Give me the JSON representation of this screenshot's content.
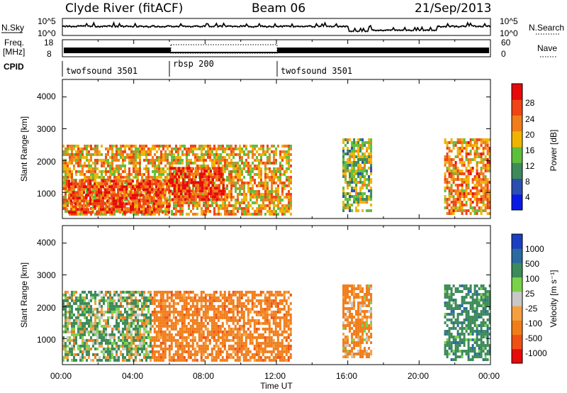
{
  "header": {
    "title": "Clyde River (fitACF)",
    "beam": "Beam 06",
    "date": "21/Sep/2013"
  },
  "noise_panel": {
    "left_label": "N.Sky",
    "right_label": "N.Search",
    "left_ticks": [
      "10^5",
      "10^0"
    ],
    "right_ticks": [
      "10^5",
      "10^0"
    ]
  },
  "freq_panel": {
    "left_label_1": "Freq.",
    "left_label_2": "[MHz]",
    "right_label": "Nave",
    "left_ticks": [
      "18",
      "8"
    ],
    "right_ticks": [
      "60",
      "0"
    ]
  },
  "cpid_panel": {
    "label": "CPID",
    "segments": [
      {
        "name": "twofsound 3501",
        "start_hour": 0,
        "end_hour": 6
      },
      {
        "name": "rbsp 200",
        "start_hour": 6,
        "end_hour": 12
      },
      {
        "name": "twofsound 3501",
        "start_hour": 12,
        "end_hour": 24
      }
    ]
  },
  "x_axis": {
    "label": "Time UT",
    "tick_labels": [
      "00:00",
      "04:00",
      "08:00",
      "12:00",
      "16:00",
      "20:00",
      "00:00"
    ],
    "range_hours": [
      0,
      24
    ]
  },
  "y_axis": {
    "label": "Slant Range [km]",
    "tick_labels": [
      "1000",
      "2000",
      "3000",
      "4000"
    ],
    "range_km": [
      180,
      4550
    ]
  },
  "power_colorbar": {
    "title": "Power [dB]",
    "tick_labels": [
      "28",
      "24",
      "20",
      "16",
      "12",
      "8",
      "4"
    ],
    "colors": [
      "#0a1ae6",
      "#2a4fb0",
      "#3d8a5a",
      "#5fbf3c",
      "#f0b400",
      "#f07d1a",
      "#f04414",
      "#e60a0a"
    ]
  },
  "velocity_colorbar": {
    "title": "Velocity [m s⁻¹]",
    "tick_labels": [
      "1000",
      "500",
      "100",
      "25",
      "-25",
      "-100",
      "-500",
      "-1000"
    ],
    "colors": [
      "#e60a0a",
      "#f05014",
      "#f07d1a",
      "#f5a040",
      "#c8c8c8",
      "#7ad24a",
      "#3d8a5a",
      "#2a6aa0",
      "#1a3fc0"
    ]
  },
  "chart_data": [
    {
      "type": "heatmap",
      "title": "Power [dB]",
      "xlabel": "Time UT",
      "ylabel": "Slant Range [km]",
      "xlim": [
        0,
        24
      ],
      "ylim": [
        180,
        4550
      ],
      "regions": [
        {
          "t_start": 0.0,
          "t_end": 12.8,
          "range_start": 300,
          "range_end": 2500,
          "value": 20
        },
        {
          "t_start": 0.2,
          "t_end": 6.0,
          "range_start": 400,
          "range_end": 1400,
          "value": 26
        },
        {
          "t_start": 6.0,
          "t_end": 9.0,
          "range_start": 800,
          "range_end": 1800,
          "value": 28
        },
        {
          "t_start": 15.7,
          "t_end": 17.3,
          "range_start": 400,
          "range_end": 2700,
          "value": 14
        },
        {
          "t_start": 21.4,
          "t_end": 24.0,
          "range_start": 300,
          "range_end": 2700,
          "value": 22
        }
      ]
    },
    {
      "type": "heatmap",
      "title": "Velocity [m s⁻¹]",
      "xlabel": "Time UT",
      "ylabel": "Slant Range [km]",
      "xlim": [
        0,
        24
      ],
      "ylim": [
        180,
        4550
      ],
      "regions": [
        {
          "t_start": 0.0,
          "t_end": 5.0,
          "range_start": 300,
          "range_end": 2500,
          "value": 100
        },
        {
          "t_start": 5.0,
          "t_end": 12.8,
          "range_start": 300,
          "range_end": 2500,
          "value": -300
        },
        {
          "t_start": 15.7,
          "t_end": 17.3,
          "range_start": 400,
          "range_end": 2700,
          "value": -200
        },
        {
          "t_start": 21.4,
          "t_end": 24.0,
          "range_start": 300,
          "range_end": 2700,
          "value": 300
        }
      ]
    }
  ]
}
